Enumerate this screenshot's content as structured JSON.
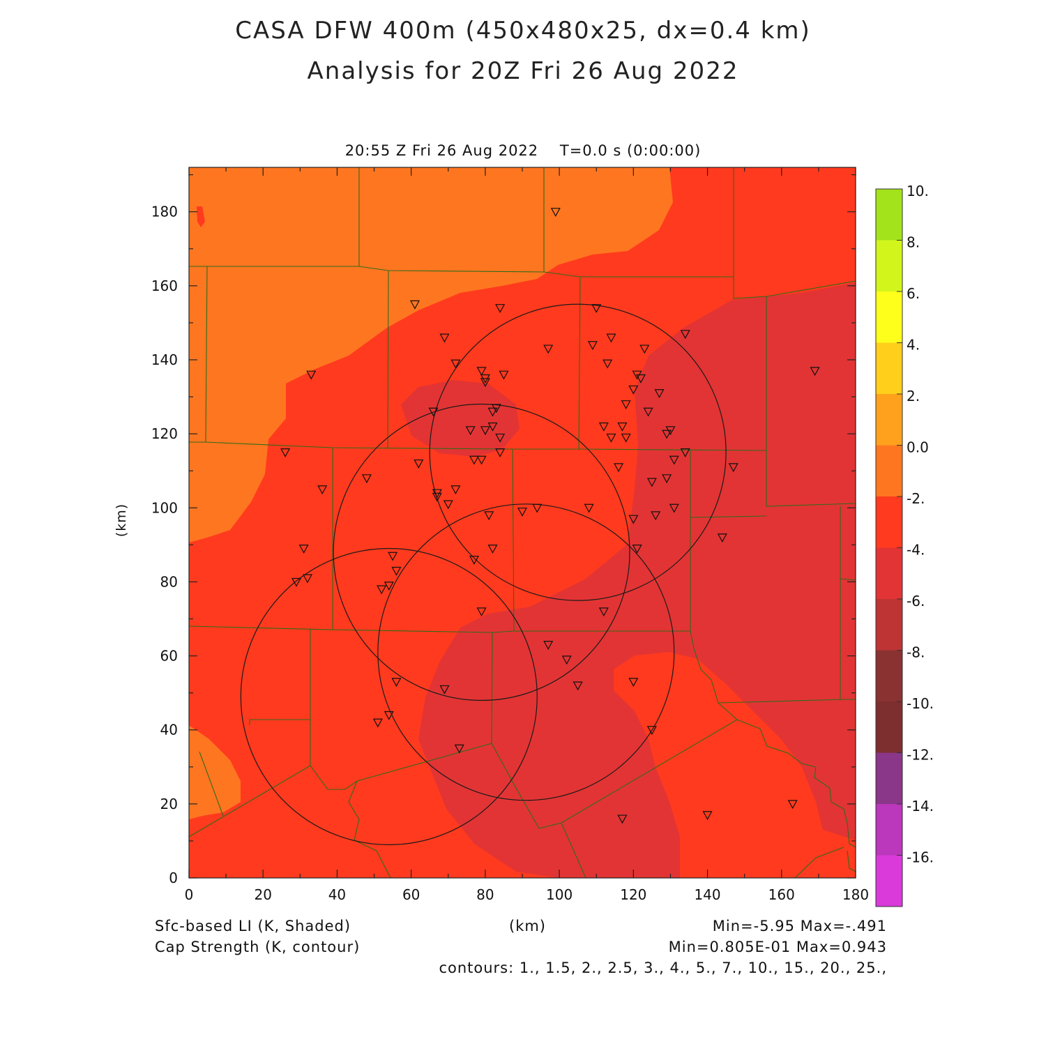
{
  "title_line1": "CASA DFW 400m (450x480x25, dx=0.4 km)",
  "title_line2": "Analysis for 20Z Fri 26 Aug 2022",
  "subtitle": "20:55 Z Fri 26 Aug 2022    T=0.0 s (0:00:00)",
  "axes": {
    "x_ticks": [
      "0",
      "20",
      "40",
      "60",
      "80",
      "100",
      "120",
      "140",
      "160",
      "180"
    ],
    "y_ticks": [
      "0",
      "20",
      "40",
      "60",
      "80",
      "100",
      "120",
      "140",
      "160",
      "180"
    ],
    "xlabel": "(km)",
    "ylabel": "(km)",
    "xlim": [
      0,
      180
    ],
    "ylim": [
      0,
      192
    ]
  },
  "footer": {
    "field1": "Sfc-based LI (K, Shaded)",
    "field2": "Cap Strength (K, contour)",
    "field1_stats": "Min=-5.95 Max=-.491",
    "field2_stats": "Min=0.805E-01 Max=0.943",
    "contours": "contours: 1., 1.5, 2., 2.5, 3., 4., 5., 7., 10., 15., 20., 25.,"
  },
  "colorbar": {
    "labels": [
      "10.",
      "8.",
      "6.",
      "4.",
      "2.",
      "0.0",
      "-2.",
      "-4.",
      "-6.",
      "-8.",
      "-10.",
      "-12.",
      "-14.",
      "-16."
    ],
    "colors": [
      "#a3e31c",
      "#d2f51c",
      "#ffff1c",
      "#ffcf1c",
      "#ffa11c",
      "#ff7620",
      "#ff3a1e",
      "#e23434",
      "#be3434",
      "#8a3232",
      "#7d2e2e",
      "#8a378a",
      "#bb37bb",
      "#d93ad9"
    ]
  },
  "field_colors": {
    "lo": "#ff7620",
    "mid": "#ff3a1e",
    "hi": "#e23434",
    "border": "#2f6b1a"
  },
  "radar_circles_km": [
    {
      "cx": 105,
      "cy": 115,
      "r": 40
    },
    {
      "cx": 79,
      "cy": 88,
      "r": 40
    },
    {
      "cx": 91,
      "cy": 61,
      "r": 40
    },
    {
      "cx": 54,
      "cy": 49,
      "r": 40
    }
  ],
  "stations_km": [
    [
      99,
      180
    ],
    [
      61,
      155
    ],
    [
      84,
      154
    ],
    [
      110,
      154
    ],
    [
      134,
      147
    ],
    [
      69,
      146
    ],
    [
      114,
      146
    ],
    [
      97,
      143
    ],
    [
      109,
      144
    ],
    [
      123,
      143
    ],
    [
      72,
      139
    ],
    [
      113,
      139
    ],
    [
      79,
      137
    ],
    [
      85,
      136
    ],
    [
      80,
      135
    ],
    [
      80,
      134
    ],
    [
      121,
      136
    ],
    [
      122,
      135
    ],
    [
      169,
      137
    ],
    [
      33,
      136
    ],
    [
      120,
      132
    ],
    [
      127,
      131
    ],
    [
      118,
      128
    ],
    [
      83,
      127
    ],
    [
      82,
      126
    ],
    [
      66,
      126
    ],
    [
      124,
      126
    ],
    [
      112,
      122
    ],
    [
      117,
      122
    ],
    [
      82,
      122
    ],
    [
      76,
      121
    ],
    [
      80,
      121
    ],
    [
      130,
      121
    ],
    [
      129,
      120
    ],
    [
      84,
      119
    ],
    [
      114,
      119
    ],
    [
      118,
      119
    ],
    [
      84,
      115
    ],
    [
      26,
      115
    ],
    [
      134,
      115
    ],
    [
      62,
      112
    ],
    [
      77,
      113
    ],
    [
      79,
      113
    ],
    [
      131,
      113
    ],
    [
      116,
      111
    ],
    [
      147,
      111
    ],
    [
      48,
      108
    ],
    [
      125,
      107
    ],
    [
      129,
      108
    ],
    [
      36,
      105
    ],
    [
      67,
      104
    ],
    [
      72,
      105
    ],
    [
      67,
      103
    ],
    [
      70,
      101
    ],
    [
      108,
      100
    ],
    [
      94,
      100
    ],
    [
      131,
      100
    ],
    [
      90,
      99
    ],
    [
      81,
      98
    ],
    [
      126,
      98
    ],
    [
      120,
      97
    ],
    [
      144,
      92
    ],
    [
      31,
      89
    ],
    [
      82,
      89
    ],
    [
      121,
      89
    ],
    [
      55,
      87
    ],
    [
      77,
      86
    ],
    [
      56,
      83
    ],
    [
      29,
      80
    ],
    [
      32,
      81
    ],
    [
      54,
      79
    ],
    [
      52,
      78
    ],
    [
      79,
      72
    ],
    [
      112,
      72
    ],
    [
      97,
      63
    ],
    [
      102,
      59
    ],
    [
      120,
      53
    ],
    [
      56,
      53
    ],
    [
      105,
      52
    ],
    [
      69,
      51
    ],
    [
      54,
      44
    ],
    [
      51,
      42
    ],
    [
      125,
      40
    ],
    [
      73,
      35
    ],
    [
      163,
      20
    ],
    [
      140,
      17
    ],
    [
      117,
      16
    ]
  ]
}
